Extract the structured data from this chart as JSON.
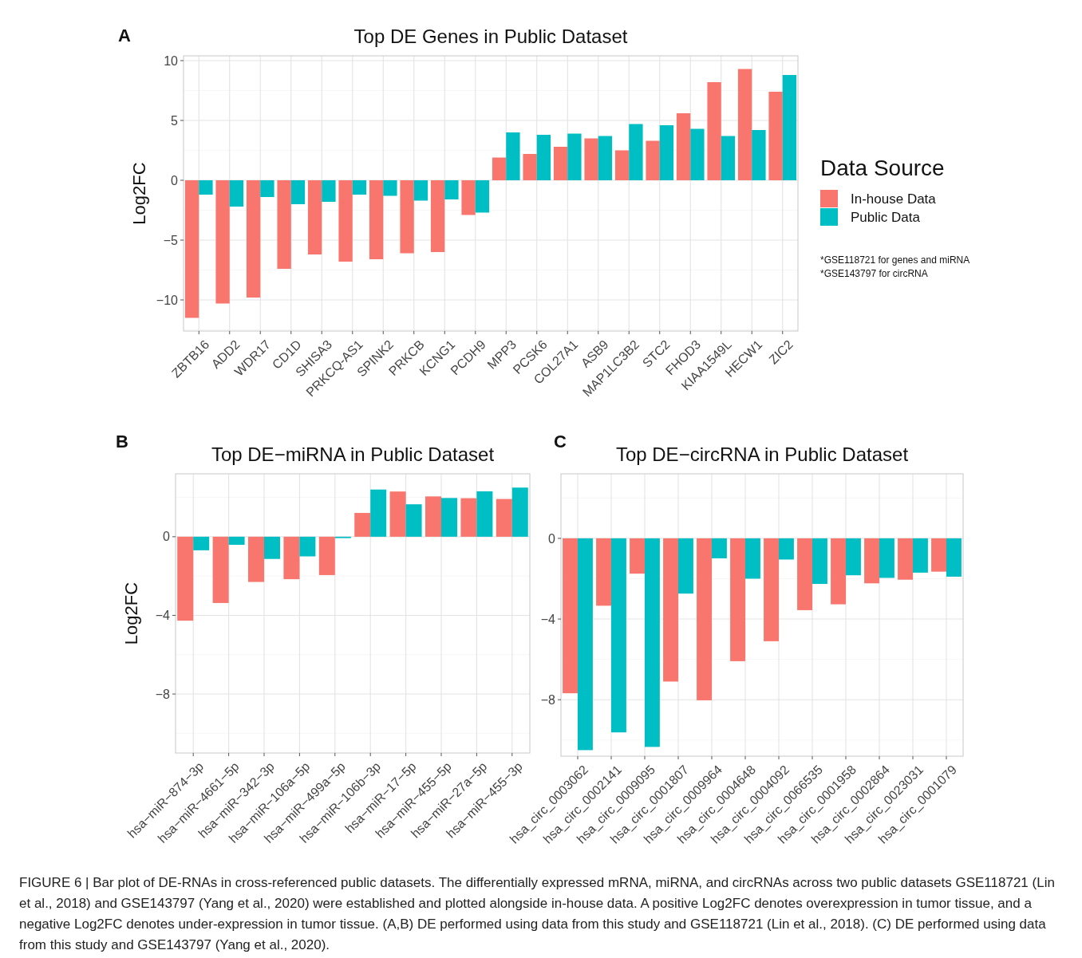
{
  "chart_data": [
    {
      "type": "bar",
      "title": "Top DE Genes in Public Dataset",
      "ylabel": "Log2FC",
      "categories": [
        "ZBTB16",
        "ADD2",
        "WDR17",
        "CD1D",
        "SHISA3",
        "PRKCQ-AS1",
        "SPINK2",
        "PRKCB",
        "KCNG1",
        "PCDH9",
        "MPP3",
        "PCSK6",
        "COL27A1",
        "ASB9",
        "MAP1LC3B2",
        "STC2",
        "FHOD3",
        "KIAA1549L",
        "HECW1",
        "ZIC2"
      ],
      "series": [
        {
          "name": "In-house Data",
          "color": "#f8766d",
          "values": [
            -11.5,
            -10.3,
            -9.8,
            -7.4,
            -6.2,
            -6.8,
            -6.6,
            -6.1,
            -6.0,
            -2.9,
            1.9,
            2.2,
            2.8,
            3.5,
            2.5,
            3.3,
            5.6,
            8.2,
            9.3,
            7.4
          ]
        },
        {
          "name": "Public Data",
          "color": "#00bfc4",
          "values": [
            -1.2,
            -2.2,
            -1.4,
            -2.0,
            -1.8,
            -1.2,
            -1.3,
            -1.7,
            -1.6,
            -2.7,
            4.0,
            3.8,
            3.9,
            3.7,
            4.7,
            4.6,
            4.3,
            3.7,
            4.2,
            8.8
          ]
        }
      ],
      "ylim": [
        -12.6,
        10.4
      ],
      "yticks": [
        -10,
        -5,
        0,
        5,
        10
      ],
      "grid": true,
      "legend": "right",
      "legend_title": "Data Source",
      "annotations": [
        "A",
        "*GSE118721 for genes and miRNA",
        "*GSE143797 for circRNA"
      ]
    },
    {
      "type": "bar",
      "title": "Top DE−miRNA in Public Dataset",
      "ylabel": "Log2FC",
      "categories": [
        "hsa−miR−874−3p",
        "hsa−miR−4661−5p",
        "hsa−miR−342−3p",
        "hsa−miR−106a−5p",
        "hsa−miR−499a−5p",
        "hsa−miR−106b−3p",
        "hsa−miR−17−5p",
        "hsa−miR−455−5p",
        "hsa−miR−27a−5p",
        "hsa−miR−455−3p"
      ],
      "series": [
        {
          "color": "#f8766d",
          "values": [
            -4.27,
            -3.37,
            -2.3,
            -2.16,
            -1.95,
            1.21,
            2.3,
            2.05,
            1.96,
            1.92
          ]
        },
        {
          "color": "#00bfc4",
          "values": [
            -0.69,
            -0.41,
            -1.13,
            -1.0,
            -0.07,
            2.4,
            1.65,
            1.97,
            2.31,
            2.5
          ]
        }
      ],
      "ylim": [
        -11,
        3.2
      ],
      "yticks": [
        -8,
        -4,
        0
      ],
      "grid": true,
      "annotations": [
        "B"
      ]
    },
    {
      "type": "bar",
      "title": "Top DE−circRNA in Public Dataset",
      "categories": [
        "hsa_circ_0003062",
        "hsa_circ_0002141",
        "hsa_circ_0009095",
        "hsa_circ_0001807",
        "hsa_circ_0009964",
        "hsa_circ_0004648",
        "hsa_circ_0004092",
        "hsa_circ_0066535",
        "hsa_circ_0001958",
        "hsa_circ_0002864",
        "hsa_circ_0023031",
        "hsa_circ_0001079"
      ],
      "series": [
        {
          "color": "#f8766d",
          "values": [
            -7.68,
            -3.34,
            -1.75,
            -7.1,
            -8.03,
            -6.09,
            -5.1,
            -3.56,
            -3.27,
            -2.23,
            -2.05,
            -1.65
          ]
        },
        {
          "color": "#00bfc4",
          "values": [
            -10.5,
            -9.62,
            -10.34,
            -2.74,
            -0.99,
            -2.0,
            -1.05,
            -2.26,
            -1.83,
            -1.96,
            -1.7,
            -1.9
          ]
        }
      ],
      "ylim": [
        -10.8,
        3.2
      ],
      "yticks": [
        -8,
        -4,
        0
      ],
      "grid": true,
      "annotations": [
        "C",
        "FIGURE 6 | Bar plot of DE-RNAs in cross-referenced public datasets. The differentially expressed mRNA, miRNA, and circRNAs across two public datasets GSE118721 (Lin et al., 2018) and GSE143797 (Yang et al., 2020) were established and plotted alongside in-house data. A positive Log2FC denotes overexpression in tumor tissue, and a negative Log2FC denotes under-expression in tumor tissue. (A,B) DE performed using data from this study and GSE118721 (Lin et al., 2018). (C) DE performed using data from this study and GSE143797 (Yang et al., 2020)."
      ]
    }
  ]
}
